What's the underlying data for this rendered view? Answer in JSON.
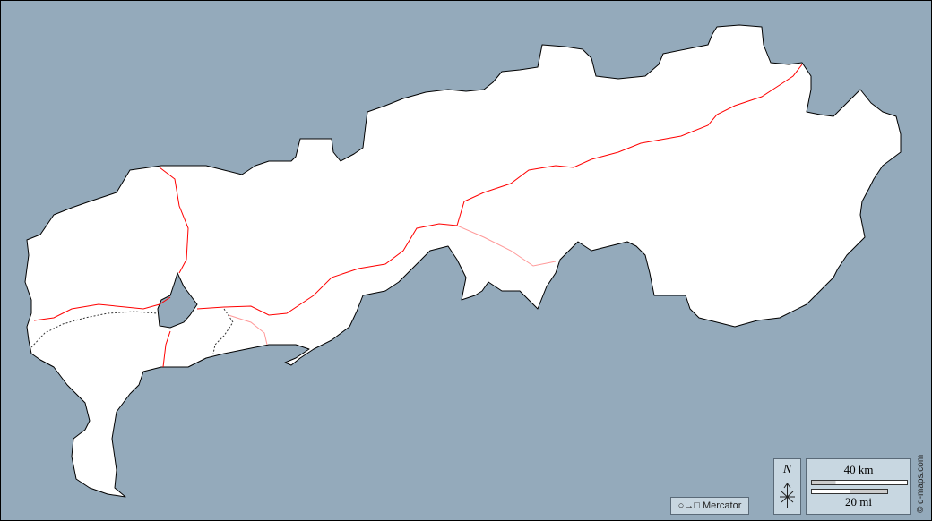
{
  "colors": {
    "sea": "#94aabb",
    "land": "#ffffff",
    "border": "#ff0000",
    "panel": "#c8d7e1"
  },
  "projection": {
    "label": "Mercator",
    "icon": "circle-to-square-icon"
  },
  "north_arrow": {
    "label": "N"
  },
  "scale": {
    "km_label": "40 km",
    "mi_label": "20 mi"
  },
  "credit": "© d-maps.com"
}
